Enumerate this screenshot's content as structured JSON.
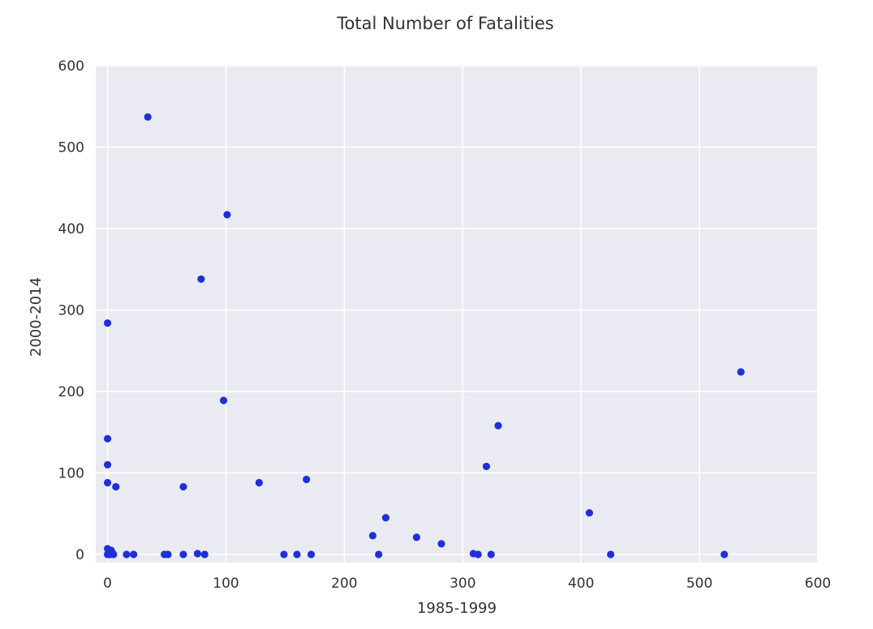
{
  "chart_data": {
    "type": "scatter",
    "title": "Total Number of Fatalities",
    "xlabel": "1985-1999",
    "ylabel": "2000-2014",
    "xlim": [
      -10,
      600
    ],
    "ylim": [
      -10,
      600
    ],
    "xticks": [
      0,
      100,
      200,
      300,
      400,
      500,
      600
    ],
    "yticks": [
      0,
      100,
      200,
      300,
      400,
      500,
      600
    ],
    "grid": true,
    "colors": {
      "point": "#1f2fd9",
      "plot_background": "#eaeaf2",
      "grid": "#ffffff",
      "text": "#333333"
    },
    "x": [
      34,
      101,
      79,
      0,
      98,
      0,
      0,
      0,
      7,
      64,
      128,
      168,
      330,
      320,
      535,
      407,
      235,
      224,
      261,
      282,
      0,
      1,
      3,
      4,
      0,
      2,
      5,
      16,
      22,
      48,
      51,
      64,
      76,
      82,
      149,
      160,
      172,
      229,
      309,
      313,
      324,
      425,
      521
    ],
    "y": [
      537,
      417,
      338,
      284,
      189,
      142,
      110,
      88,
      83,
      83,
      88,
      92,
      158,
      108,
      224,
      51,
      45,
      23,
      21,
      13,
      7,
      3,
      5,
      2,
      0,
      0,
      0,
      0,
      0,
      0,
      0,
      0,
      1,
      0,
      0,
      0,
      0,
      0,
      1,
      0,
      0,
      0,
      0
    ]
  }
}
